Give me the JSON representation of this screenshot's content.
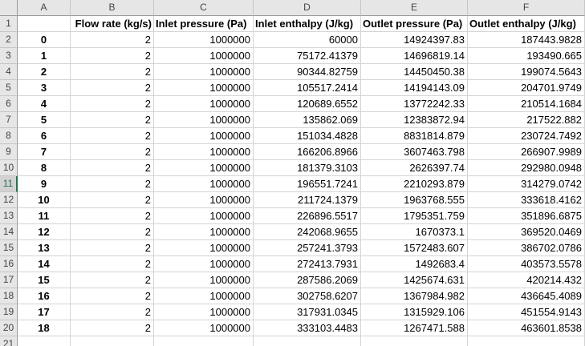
{
  "columns": [
    "A",
    "B",
    "C",
    "D",
    "E",
    "F"
  ],
  "header_row": {
    "row_number": "1",
    "cells": [
      "",
      "Flow rate (kg/s)",
      "Inlet pressure (Pa)",
      "Inlet enthalpy (J/kg)",
      "Outlet pressure (Pa)",
      "Outlet enthalpy (J/kg)"
    ]
  },
  "selected_row_index": 9,
  "rows": [
    {
      "n": "2",
      "cells": [
        "0",
        "2",
        "1000000",
        "60000",
        "14924397.83",
        "187443.9828"
      ]
    },
    {
      "n": "3",
      "cells": [
        "1",
        "2",
        "1000000",
        "75172.41379",
        "14696819.14",
        "193490.665"
      ]
    },
    {
      "n": "4",
      "cells": [
        "2",
        "2",
        "1000000",
        "90344.82759",
        "14450450.38",
        "199074.5643"
      ]
    },
    {
      "n": "5",
      "cells": [
        "3",
        "2",
        "1000000",
        "105517.2414",
        "14194143.09",
        "204701.9749"
      ]
    },
    {
      "n": "6",
      "cells": [
        "4",
        "2",
        "1000000",
        "120689.6552",
        "13772242.33",
        "210514.1684"
      ]
    },
    {
      "n": "7",
      "cells": [
        "5",
        "2",
        "1000000",
        "135862.069",
        "12383872.94",
        "217522.882"
      ]
    },
    {
      "n": "8",
      "cells": [
        "6",
        "2",
        "1000000",
        "151034.4828",
        "8831814.879",
        "230724.7492"
      ]
    },
    {
      "n": "9",
      "cells": [
        "7",
        "2",
        "1000000",
        "166206.8966",
        "3607463.798",
        "266907.9989"
      ]
    },
    {
      "n": "10",
      "cells": [
        "8",
        "2",
        "1000000",
        "181379.3103",
        "2626397.74",
        "292980.0948"
      ]
    },
    {
      "n": "11",
      "cells": [
        "9",
        "2",
        "1000000",
        "196551.7241",
        "2210293.879",
        "314279.0742"
      ]
    },
    {
      "n": "12",
      "cells": [
        "10",
        "2",
        "1000000",
        "211724.1379",
        "1963768.555",
        "333618.4162"
      ]
    },
    {
      "n": "13",
      "cells": [
        "11",
        "2",
        "1000000",
        "226896.5517",
        "1795351.759",
        "351896.6875"
      ]
    },
    {
      "n": "14",
      "cells": [
        "12",
        "2",
        "1000000",
        "242068.9655",
        "1670373.1",
        "369520.0469"
      ]
    },
    {
      "n": "15",
      "cells": [
        "13",
        "2",
        "1000000",
        "257241.3793",
        "1572483.607",
        "386702.0786"
      ]
    },
    {
      "n": "16",
      "cells": [
        "14",
        "2",
        "1000000",
        "272413.7931",
        "1492683.4",
        "403573.5578"
      ]
    },
    {
      "n": "17",
      "cells": [
        "15",
        "2",
        "1000000",
        "287586.2069",
        "1425674.631",
        "420214.432"
      ]
    },
    {
      "n": "18",
      "cells": [
        "16",
        "2",
        "1000000",
        "302758.6207",
        "1367984.982",
        "436645.4089"
      ]
    },
    {
      "n": "19",
      "cells": [
        "17",
        "2",
        "1000000",
        "317931.0345",
        "1315929.106",
        "451554.9143"
      ]
    },
    {
      "n": "20",
      "cells": [
        "18",
        "2",
        "1000000",
        "333103.4483",
        "1267471.588",
        "463601.8538"
      ]
    },
    {
      "n": "21",
      "cells": [
        "",
        "",
        "",
        "",
        "",
        ""
      ]
    }
  ]
}
